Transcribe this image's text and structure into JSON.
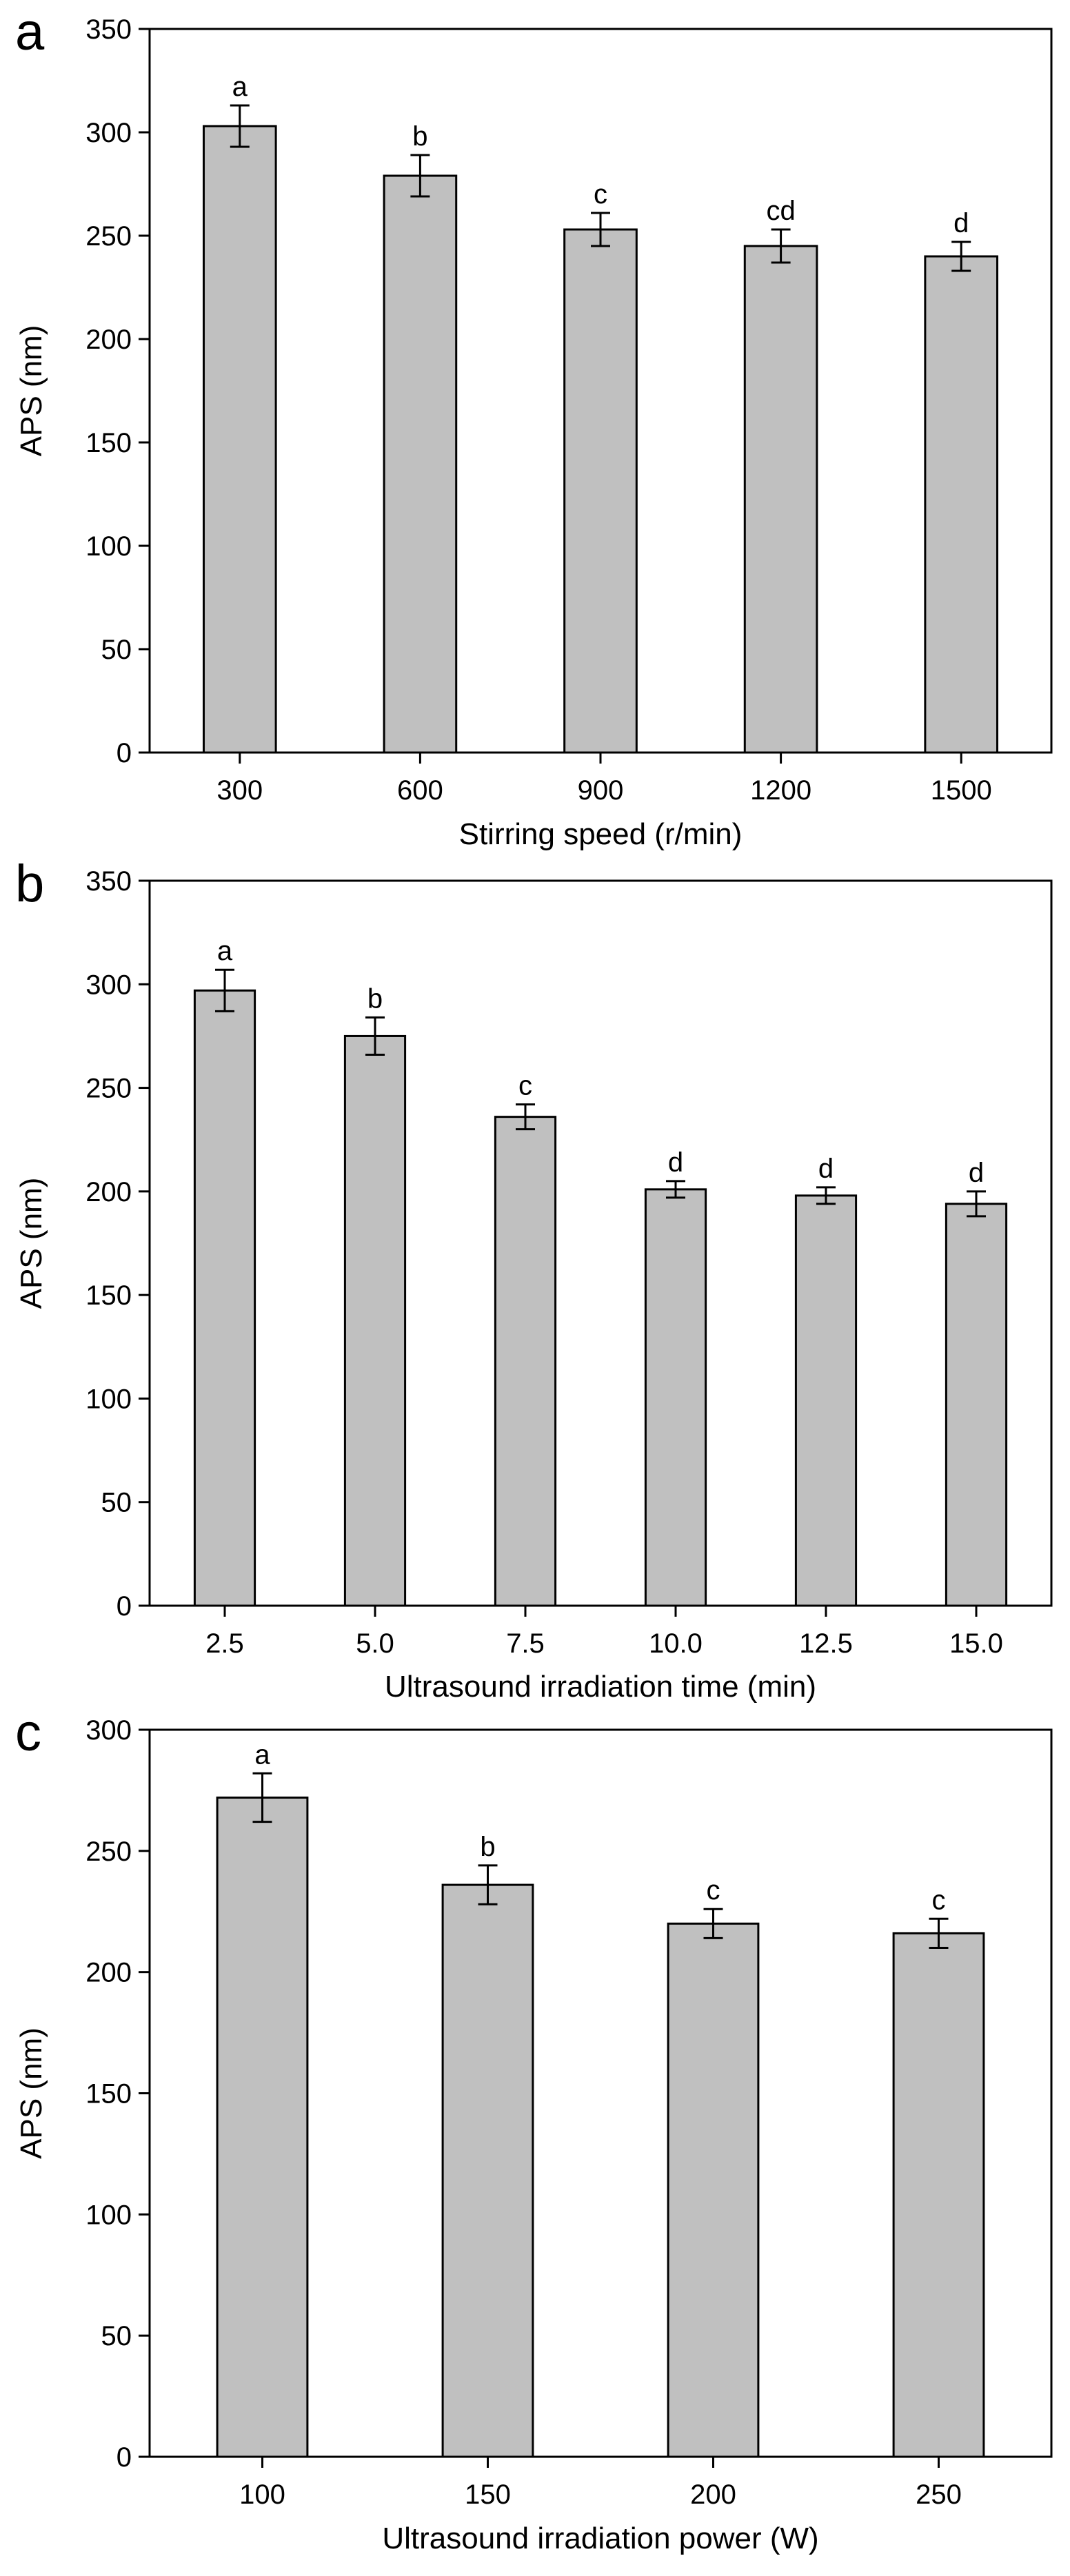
{
  "chart_data": [
    {
      "type": "bar",
      "panel": "a",
      "categories": [
        "300",
        "600",
        "900",
        "1200",
        "1500"
      ],
      "values": [
        303,
        279,
        253,
        245,
        240
      ],
      "errors": [
        10,
        10,
        8,
        8,
        7
      ],
      "significance": [
        "a",
        "b",
        "c",
        "cd",
        "d"
      ],
      "xlabel": "Stirring speed (r/min)",
      "ylabel": "APS (nm)",
      "ylim": [
        0,
        350
      ],
      "yticks": [
        "0",
        "50",
        "100",
        "150",
        "200",
        "250",
        "300",
        "350"
      ],
      "bar_color": "#c0c0c0"
    },
    {
      "type": "bar",
      "panel": "b",
      "categories": [
        "2.5",
        "5.0",
        "7.5",
        "10.0",
        "12.5",
        "15.0"
      ],
      "values": [
        297,
        275,
        236,
        201,
        198,
        194
      ],
      "errors": [
        10,
        9,
        6,
        4,
        4,
        6
      ],
      "significance": [
        "a",
        "b",
        "c",
        "d",
        "d",
        "d"
      ],
      "xlabel": "Ultrasound irradiation time (min)",
      "ylabel": "APS (nm)",
      "ylim": [
        0,
        350
      ],
      "yticks": [
        "0",
        "50",
        "100",
        "150",
        "200",
        "250",
        "300",
        "350"
      ],
      "bar_color": "#c0c0c0"
    },
    {
      "type": "bar",
      "panel": "c",
      "categories": [
        "100",
        "150",
        "200",
        "250"
      ],
      "values": [
        272,
        236,
        220,
        216
      ],
      "errors": [
        10,
        8,
        6,
        6
      ],
      "significance": [
        "a",
        "b",
        "c",
        "c"
      ],
      "xlabel": "Ultrasound irradiation power (W)",
      "ylabel": "APS (nm)",
      "ylim": [
        0,
        300
      ],
      "yticks": [
        "0",
        "50",
        "100",
        "150",
        "200",
        "250",
        "300"
      ],
      "bar_color": "#c0c0c0"
    }
  ]
}
